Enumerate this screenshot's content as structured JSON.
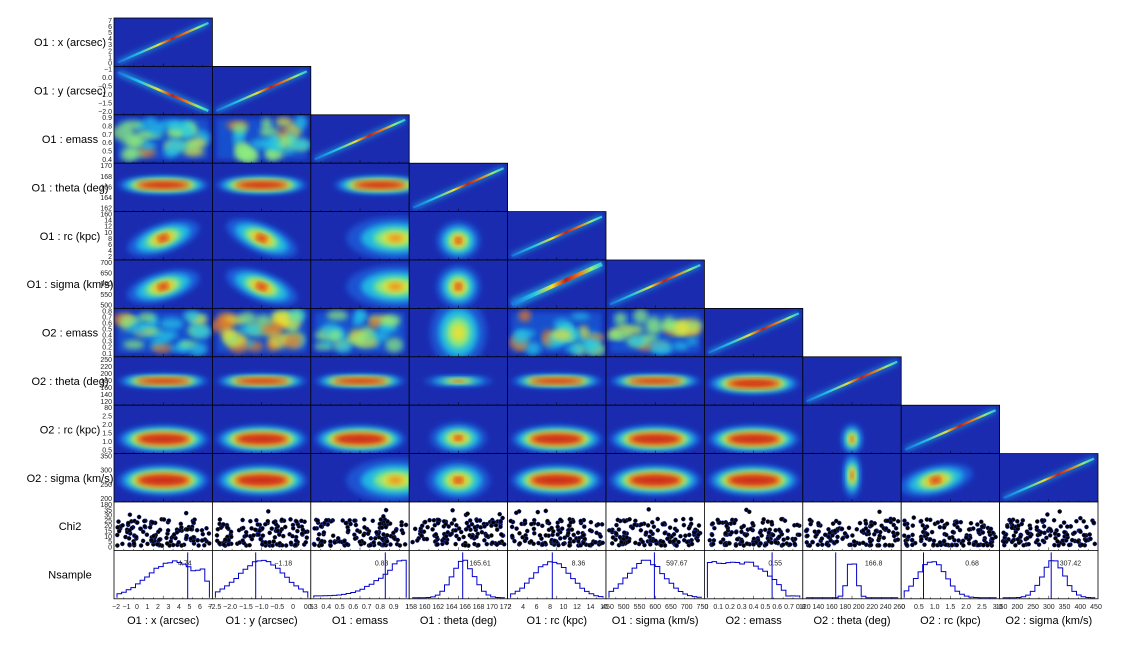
{
  "chart_data": {
    "type": "heatmap",
    "row_labels": [
      "O1 : x (arcsec)",
      "O1 : y (arcsec)",
      "O1 : emass",
      "O1 : theta (deg)",
      "O1 : rc (kpc)",
      "O1 : sigma (km/s)",
      "O2 : emass",
      "O2 : theta (deg)",
      "O2 : rc (kpc)",
      "O2 : sigma (km/s)",
      "Chi2",
      "Nsample"
    ],
    "col_labels": [
      "O1 : x (arcsec)",
      "O1 : y (arcsec)",
      "O1 : emass",
      "O1 : theta (deg)",
      "O1 : rc (kpc)",
      "O1 : sigma (km/s)",
      "O2 : emass",
      "O2 : theta (deg)",
      "O2 : rc (kpc)",
      "O2 : sigma (km/s)"
    ],
    "x_tick_labels": [
      [
        "−2",
        "−1",
        "0",
        "1",
        "2",
        "3",
        "4",
        "5",
        "6",
        "7"
      ],
      [
        "−2.5",
        "−2.0",
        "−1.5",
        "−1.0",
        "−0.5",
        "0",
        "0.5"
      ],
      [
        "0.3",
        "0.4",
        "0.5",
        "0.6",
        "0.7",
        "0.8",
        "0.9",
        "1"
      ],
      [
        "158",
        "160",
        "162",
        "164",
        "166",
        "168",
        "170",
        "172"
      ],
      [
        "2",
        "4",
        "6",
        "8",
        "10",
        "12",
        "14",
        "16"
      ],
      [
        "450",
        "500",
        "550",
        "600",
        "650",
        "700",
        "750"
      ],
      [
        "0",
        "0.1",
        "0.2",
        "0.3",
        "0.4",
        "0.5",
        "0.6",
        "0.7",
        "0.8"
      ],
      [
        "120",
        "140",
        "160",
        "180",
        "200",
        "220",
        "240",
        "260"
      ],
      [
        "0",
        "0.5",
        "1.0",
        "1.5",
        "2.0",
        "2.5",
        "3.0"
      ],
      [
        "150",
        "200",
        "250",
        "300",
        "350",
        "400",
        "450"
      ]
    ],
    "y_tick_labels": [
      [
        "0",
        "1",
        "2",
        "3",
        "4",
        "5",
        "6",
        "7"
      ],
      [
        "−2.0",
        "−1.5",
        "−1.0",
        "−0.5",
        "0.0",
        "−1"
      ],
      [
        "0.4",
        "0.5",
        "0.6",
        "0.7",
        "0.8",
        "0.9"
      ],
      [
        "162",
        "164",
        "166",
        "168",
        "170"
      ],
      [
        "2",
        "4",
        "6",
        "8",
        "10",
        "12",
        "14",
        "160"
      ],
      [
        "500",
        "550",
        "600",
        "650",
        "700"
      ],
      [
        "0.1",
        "0.2",
        "0.3",
        "0.4",
        "0.5",
        "0.6",
        "0.7",
        "0.8"
      ],
      [
        "120",
        "140",
        "160",
        "180",
        "200",
        "220",
        "250"
      ],
      [
        "0.5",
        "1.0",
        "1.5",
        "2.0",
        "2.5",
        "80"
      ],
      [
        "200",
        "250",
        "300",
        "350"
      ],
      [
        "0",
        "5",
        "10",
        "15",
        "20",
        "25",
        "30",
        "35",
        "180"
      ]
    ],
    "median_labels": [
      "4.74",
      "−1.18",
      "0.83",
      "165.61",
      "8.36",
      "597.67",
      "0.55",
      "166.8",
      "0.68",
      "307.42"
    ],
    "median_values": [
      4.74,
      -1.18,
      0.83,
      165.61,
      8.36,
      597.67,
      0.55,
      166.8,
      0.68,
      307.42
    ],
    "chi2_ylim": [
      0,
      40
    ],
    "colors": {
      "background_2d": "#1a2bb0",
      "marker": "#000000",
      "histogram": "#0000cc",
      "colormap": [
        "#1a2bb0",
        "#1a6de8",
        "#22c8e8",
        "#8ef07a",
        "#f0e030",
        "#f07a18",
        "#c81818"
      ]
    }
  }
}
